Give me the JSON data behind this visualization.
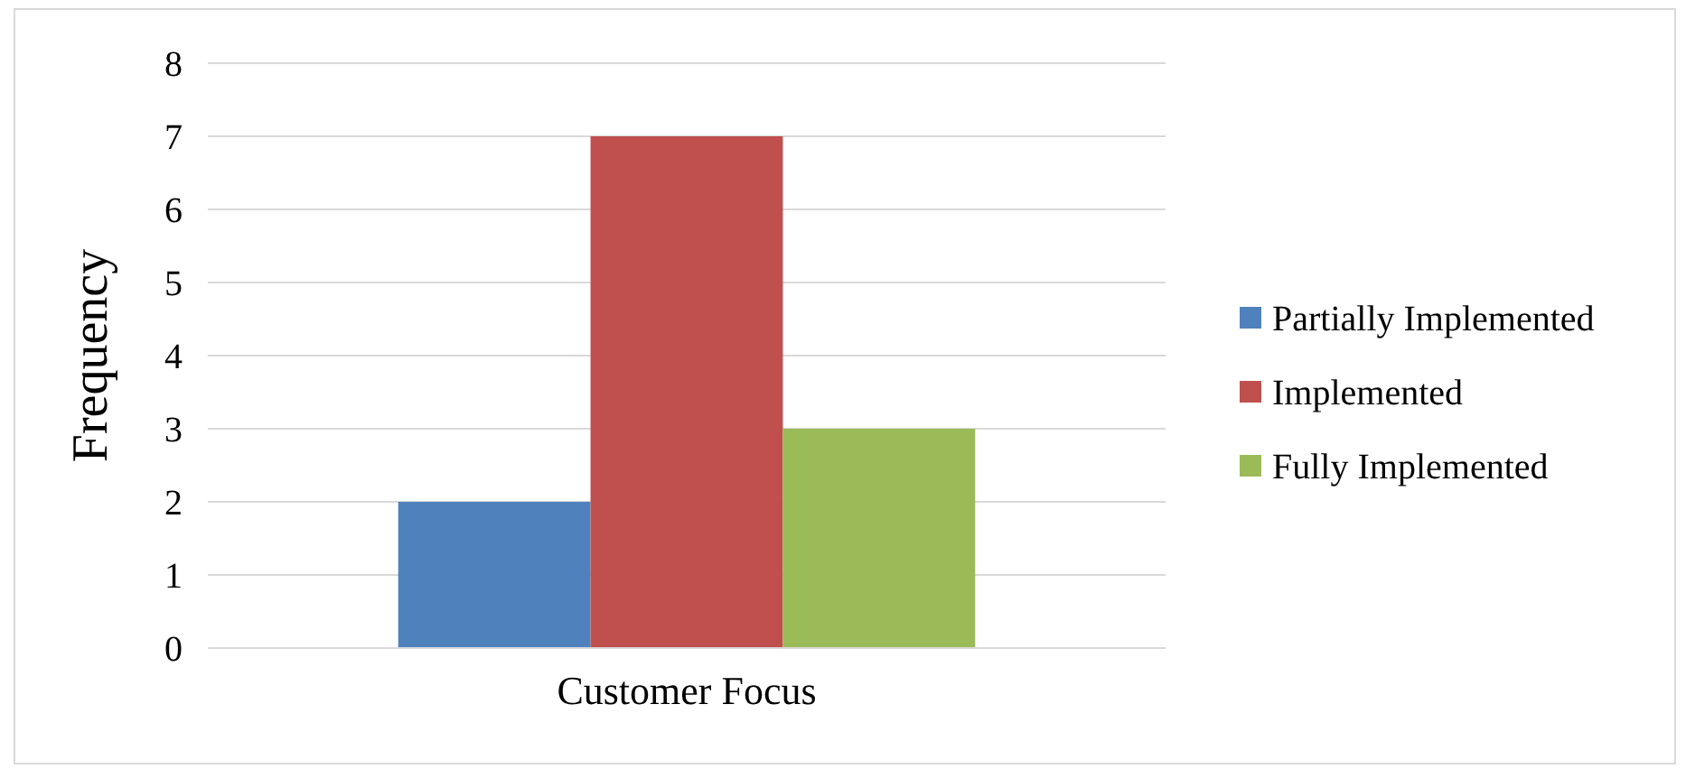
{
  "chart_data": {
    "type": "bar",
    "ylabel": "Frequency",
    "categories": [
      "Customer Focus"
    ],
    "series": [
      {
        "name": "Partially Implemented",
        "color": "#4f81bd",
        "values": [
          2
        ]
      },
      {
        "name": "Implemented",
        "color": "#c0504d",
        "values": [
          7
        ]
      },
      {
        "name": "Fully Implemented",
        "color": "#9bbb59",
        "values": [
          3
        ]
      }
    ],
    "ylim": [
      0,
      8
    ],
    "yticks": [
      0,
      1,
      2,
      3,
      4,
      5,
      6,
      7,
      8
    ],
    "grid": "y",
    "legend": "right"
  }
}
